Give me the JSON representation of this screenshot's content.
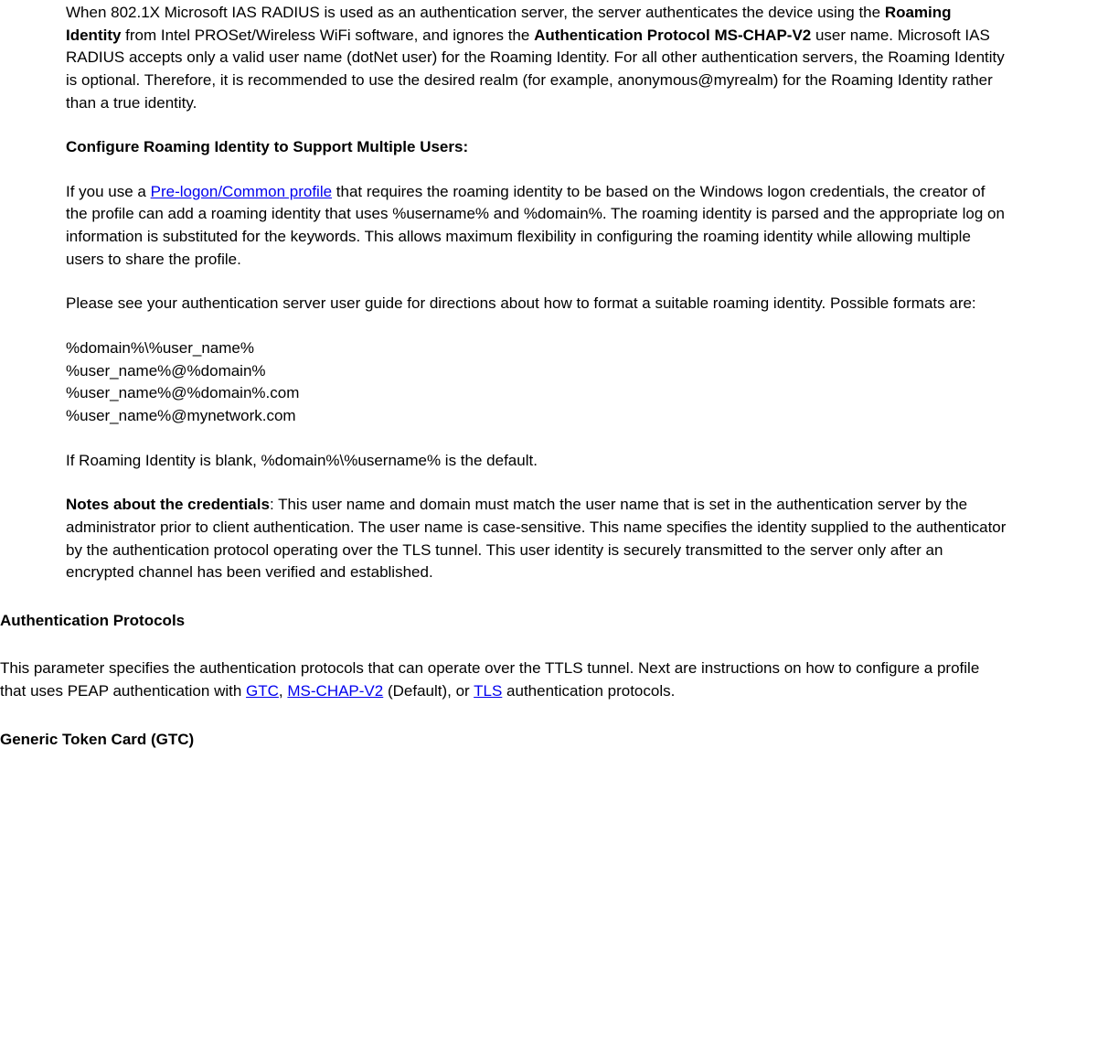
{
  "para1_prefix": "When 802.1X Microsoft IAS RADIUS is used as an authentication server, the server authenticates the device using the ",
  "para1_bold1": "Roaming Identity",
  "para1_mid1": " from Intel PROSet/Wireless WiFi software, and ignores the ",
  "para1_bold2": "Authentication Protocol MS-CHAP-V2",
  "para1_suffix": " user name. Microsoft IAS RADIUS accepts only a valid user name (dotNet user) for the Roaming Identity. For all other authentication servers, the Roaming Identity is optional. Therefore, it is recommended to use the desired realm (for example, anonymous@myrealm) for the Roaming Identity rather than a true identity.",
  "heading1": "Configure Roaming Identity to Support Multiple Users:",
  "para2_prefix": "If you use a ",
  "para2_link": "Pre-logon/Common profile",
  "para2_suffix": " that requires the roaming identity to be based on the Windows logon credentials, the creator of the profile can add a roaming identity that uses %username% and %domain%. The roaming identity is parsed and the appropriate log on information is substituted for the keywords. This allows maximum flexibility in configuring the roaming identity while allowing multiple users to share the profile.",
  "para3": "Please see your authentication server user guide for directions about how to format a suitable roaming identity. Possible formats are:",
  "format1": "%domain%\\%user_name%",
  "format2": "%user_name%@%domain%",
  "format3": "%user_name%@%domain%.com",
  "format4": "%user_name%@mynetwork.com",
  "para4": "If Roaming Identity is blank, %domain%\\%username% is the default.",
  "para5_bold": "Notes about the credentials",
  "para5_suffix": ": This user name and domain must match the user name that is set in the authentication server by the administrator prior to client authentication. The user name is case-sensitive. This name specifies the identity supplied to the authenticator by the authentication protocol operating over the TLS tunnel. This user identity is securely transmitted to the server only after an encrypted channel has been verified and established.",
  "heading2": "Authentication Protocols",
  "para6_prefix": "This parameter specifies the authentication protocols that can operate over the TTLS tunnel. Next are instructions on how to configure a profile that uses PEAP authentication with ",
  "para6_link1": "GTC",
  "para6_mid1": ", ",
  "para6_link2": "MS-CHAP-V2",
  "para6_mid2": " (Default), or ",
  "para6_link3": "TLS",
  "para6_suffix": " authentication protocols.",
  "heading3": "Generic Token Card (GTC)"
}
